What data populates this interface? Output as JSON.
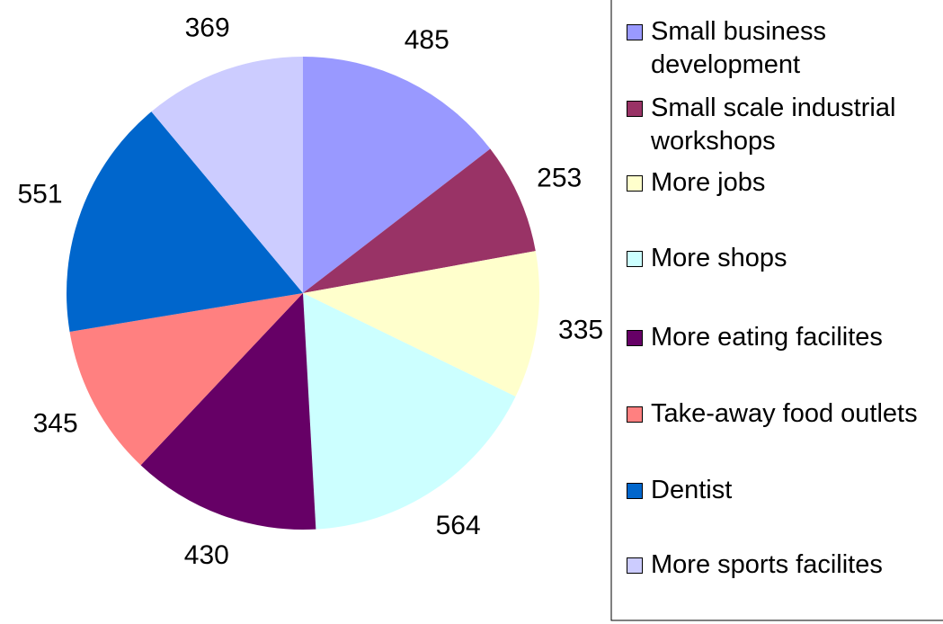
{
  "chart_data": {
    "type": "pie",
    "categories": [
      "Small business development",
      "Small scale industrial workshops",
      "More jobs",
      "More shops",
      "More eating facilites",
      "Take-away food outlets",
      "Dentist",
      "More sports facilites"
    ],
    "values": [
      485,
      253,
      335,
      564,
      430,
      345,
      551,
      369
    ],
    "colors": [
      "#9999ff",
      "#993366",
      "#ffffcc",
      "#ccffff",
      "#660066",
      "#ff8080",
      "#0066cc",
      "#ccccff"
    ],
    "legend": "right"
  }
}
